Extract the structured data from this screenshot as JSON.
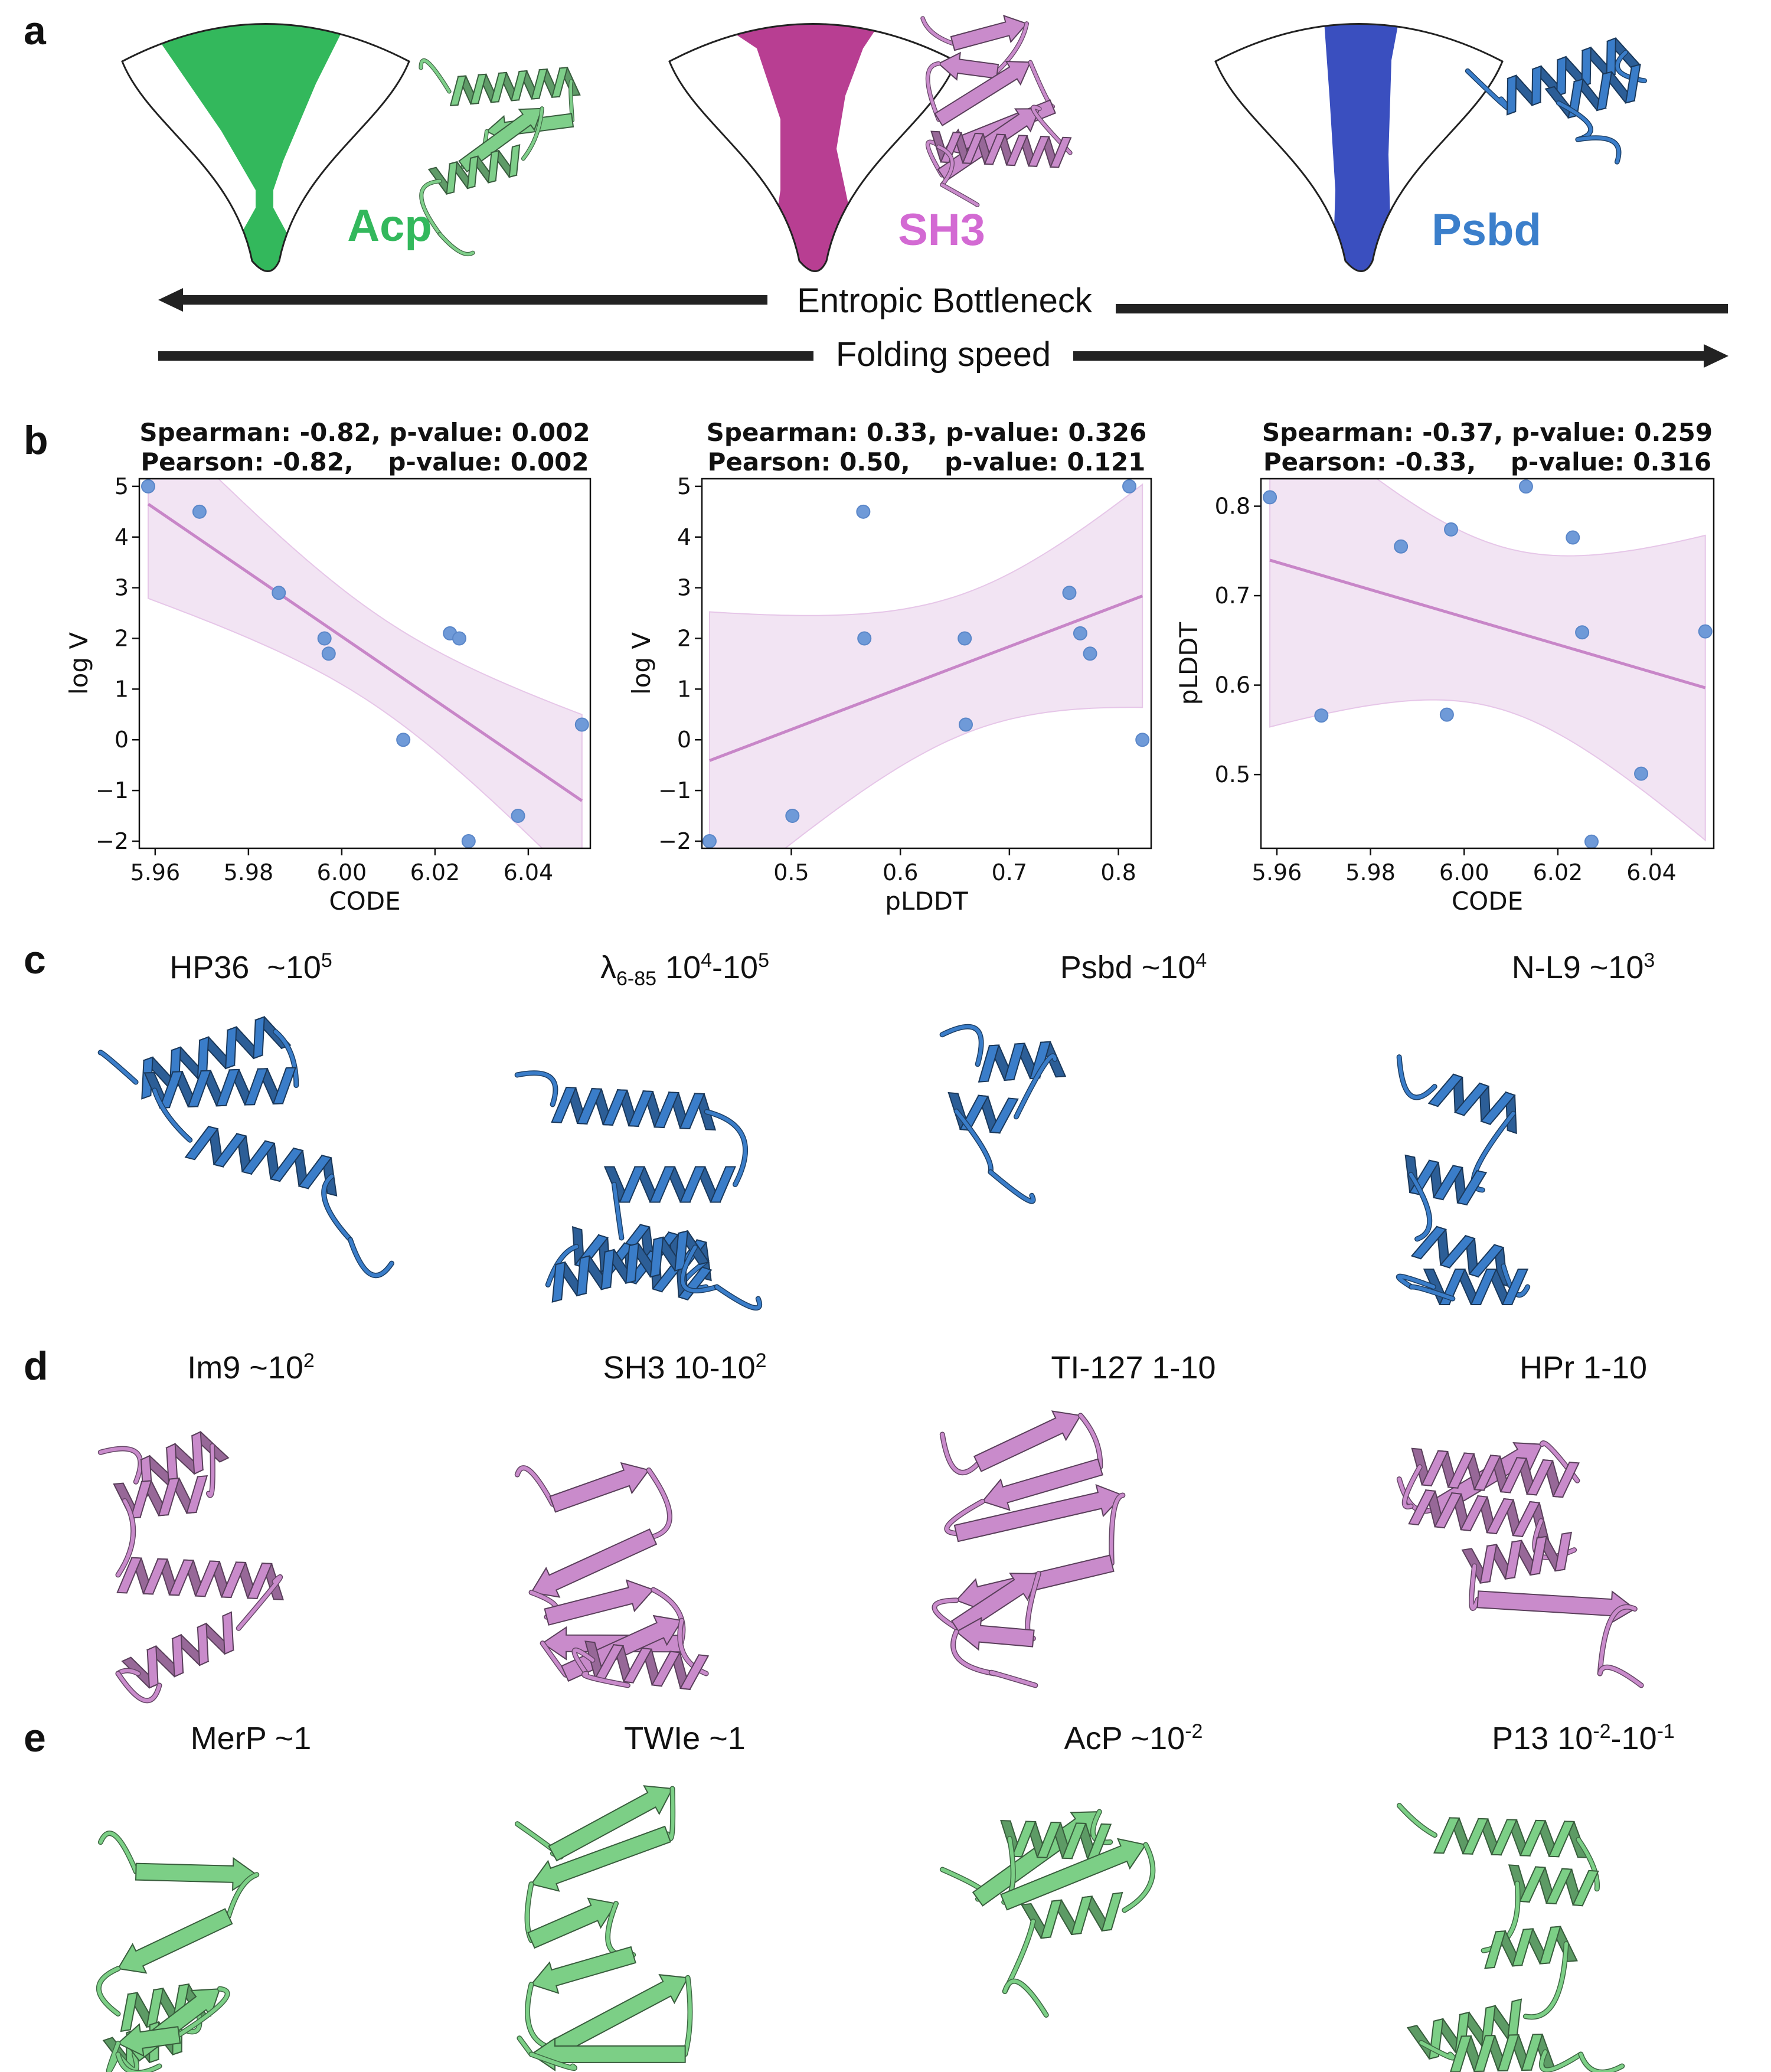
{
  "panel_labels": {
    "a": "a",
    "b": "b",
    "c": "c",
    "d": "d",
    "e": "e"
  },
  "panel_a": {
    "funnels": [
      {
        "label": "Acp",
        "color": "#33b85c",
        "label_color": "#33b85c",
        "protein_color": "#7fcf8a"
      },
      {
        "label": "SH3",
        "color": "#b83e92",
        "label_color": "#d36ad3",
        "protein_color": "#c98bcb"
      },
      {
        "label": "Psbd",
        "color": "#3a4fbf",
        "label_color": "#3b7fcb",
        "protein_color": "#3a7dc9"
      }
    ],
    "entropic_label": "Entropic Bottleneck",
    "folding_label": "Folding speed",
    "arrow_color": "#222222"
  },
  "chart_data": [
    {
      "type": "scatter",
      "title_lines": [
        "Spearman: -0.82, p-value: 0.002",
        "Pearson: -0.82,    p-value: 0.002"
      ],
      "xlabel": "CODE",
      "ylabel": "log V",
      "x": [
        5.9585,
        5.9695,
        5.9865,
        5.9963,
        5.9972,
        6.0132,
        6.0232,
        6.0252,
        6.0272,
        6.0378,
        6.0515
      ],
      "y": [
        5.0,
        4.5,
        2.9,
        2.0,
        1.7,
        0.0,
        2.1,
        2.0,
        -2.0,
        -1.5,
        0.3
      ],
      "xlim": [
        5.9566,
        6.0533
      ],
      "ylim": [
        -2.14,
        5.15
      ],
      "xticks": [
        5.96,
        5.98,
        6.0,
        6.02,
        6.04
      ],
      "xtick_labels": [
        "5.96",
        "5.98",
        "6.00",
        "6.02",
        "6.04"
      ],
      "yticks": [
        -2,
        -1,
        0,
        1,
        2,
        3,
        4,
        5
      ],
      "ytick_labels": [
        "−2",
        "−1",
        "0",
        "1",
        "2",
        "3",
        "4",
        "5"
      ],
      "regression": true,
      "grid": false
    },
    {
      "type": "scatter",
      "title_lines": [
        "Spearman: 0.33, p-value: 0.326",
        "Pearson: 0.50,    p-value: 0.121"
      ],
      "xlabel": "pLDDT",
      "ylabel": "log V",
      "x": [
        0.81,
        0.566,
        0.755,
        0.567,
        0.774,
        0.822,
        0.765,
        0.659,
        0.425,
        0.501,
        0.66
      ],
      "y": [
        5.0,
        4.5,
        2.9,
        2.0,
        1.7,
        0.0,
        2.1,
        2.0,
        -2.0,
        -1.5,
        0.3
      ],
      "xlim": [
        0.418,
        0.83
      ],
      "ylim": [
        -2.14,
        5.15
      ],
      "xticks": [
        0.5,
        0.6,
        0.7,
        0.8
      ],
      "xtick_labels": [
        "0.5",
        "0.6",
        "0.7",
        "0.8"
      ],
      "yticks": [
        -2,
        -1,
        0,
        1,
        2,
        3,
        4,
        5
      ],
      "ytick_labels": [
        "−2",
        "−1",
        "0",
        "1",
        "2",
        "3",
        "4",
        "5"
      ],
      "regression": true,
      "grid": false
    },
    {
      "type": "scatter",
      "title_lines": [
        "Spearman: -0.37, p-value: 0.259",
        "Pearson: -0.33,    p-value: 0.316"
      ],
      "xlabel": "CODE",
      "ylabel": "pLDDT",
      "x": [
        5.9585,
        5.9695,
        5.9865,
        5.9963,
        5.9972,
        6.0132,
        6.0232,
        6.0252,
        6.0272,
        6.0378,
        6.0515
      ],
      "y": [
        0.81,
        0.566,
        0.755,
        0.567,
        0.774,
        0.822,
        0.765,
        0.659,
        0.425,
        0.501,
        0.66
      ],
      "xlim": [
        5.9566,
        6.0533
      ],
      "ylim": [
        0.4176,
        0.8307
      ],
      "xticks": [
        5.96,
        5.98,
        6.0,
        6.02,
        6.04
      ],
      "xtick_labels": [
        "5.96",
        "5.98",
        "6.00",
        "6.02",
        "6.04"
      ],
      "yticks": [
        0.5,
        0.6,
        0.7,
        0.8
      ],
      "ytick_labels": [
        "0.5",
        "0.6",
        "0.7",
        "0.8"
      ],
      "regression": true,
      "grid": false
    }
  ],
  "chart_colors": {
    "point": "#6f9ad8",
    "point_edge": "#5a86c8",
    "line": "#c886c8",
    "band": "#f2e4f3",
    "band_edge": "#e6c6e8"
  },
  "panel_c": {
    "color": "#3a7dc9",
    "proteins": [
      {
        "parts": [
          {
            "t": "HP36  ~10"
          },
          {
            "sup": "5"
          }
        ]
      },
      {
        "parts": [
          {
            "t": "λ"
          },
          {
            "sub": "6-85"
          },
          {
            "t": " 10"
          },
          {
            "sup": "4"
          },
          {
            "t": "-10"
          },
          {
            "sup": "5"
          }
        ]
      },
      {
        "parts": [
          {
            "t": "Psbd ~10"
          },
          {
            "sup": "4"
          }
        ]
      },
      {
        "parts": [
          {
            "t": "N-L9 ~10"
          },
          {
            "sup": "3"
          }
        ]
      }
    ]
  },
  "panel_d": {
    "color": "#c98bcb",
    "proteins": [
      {
        "parts": [
          {
            "t": "Im9 ~10"
          },
          {
            "sup": "2"
          }
        ]
      },
      {
        "parts": [
          {
            "t": "SH3 10-10"
          },
          {
            "sup": "2"
          }
        ]
      },
      {
        "parts": [
          {
            "t": "TI-127 1-10"
          }
        ]
      },
      {
        "parts": [
          {
            "t": "HPr 1-10"
          }
        ]
      }
    ]
  },
  "panel_e": {
    "color": "#7ccf86",
    "proteins": [
      {
        "parts": [
          {
            "t": "MerP ~1"
          }
        ]
      },
      {
        "parts": [
          {
            "t": "TWIe ~1"
          }
        ]
      },
      {
        "parts": [
          {
            "t": "AcP ~10"
          },
          {
            "sup": "-2"
          }
        ]
      },
      {
        "parts": [
          {
            "t": "P13 10"
          },
          {
            "sup": "-2"
          },
          {
            "t": "-10"
          },
          {
            "sup": "-1"
          }
        ]
      }
    ]
  }
}
